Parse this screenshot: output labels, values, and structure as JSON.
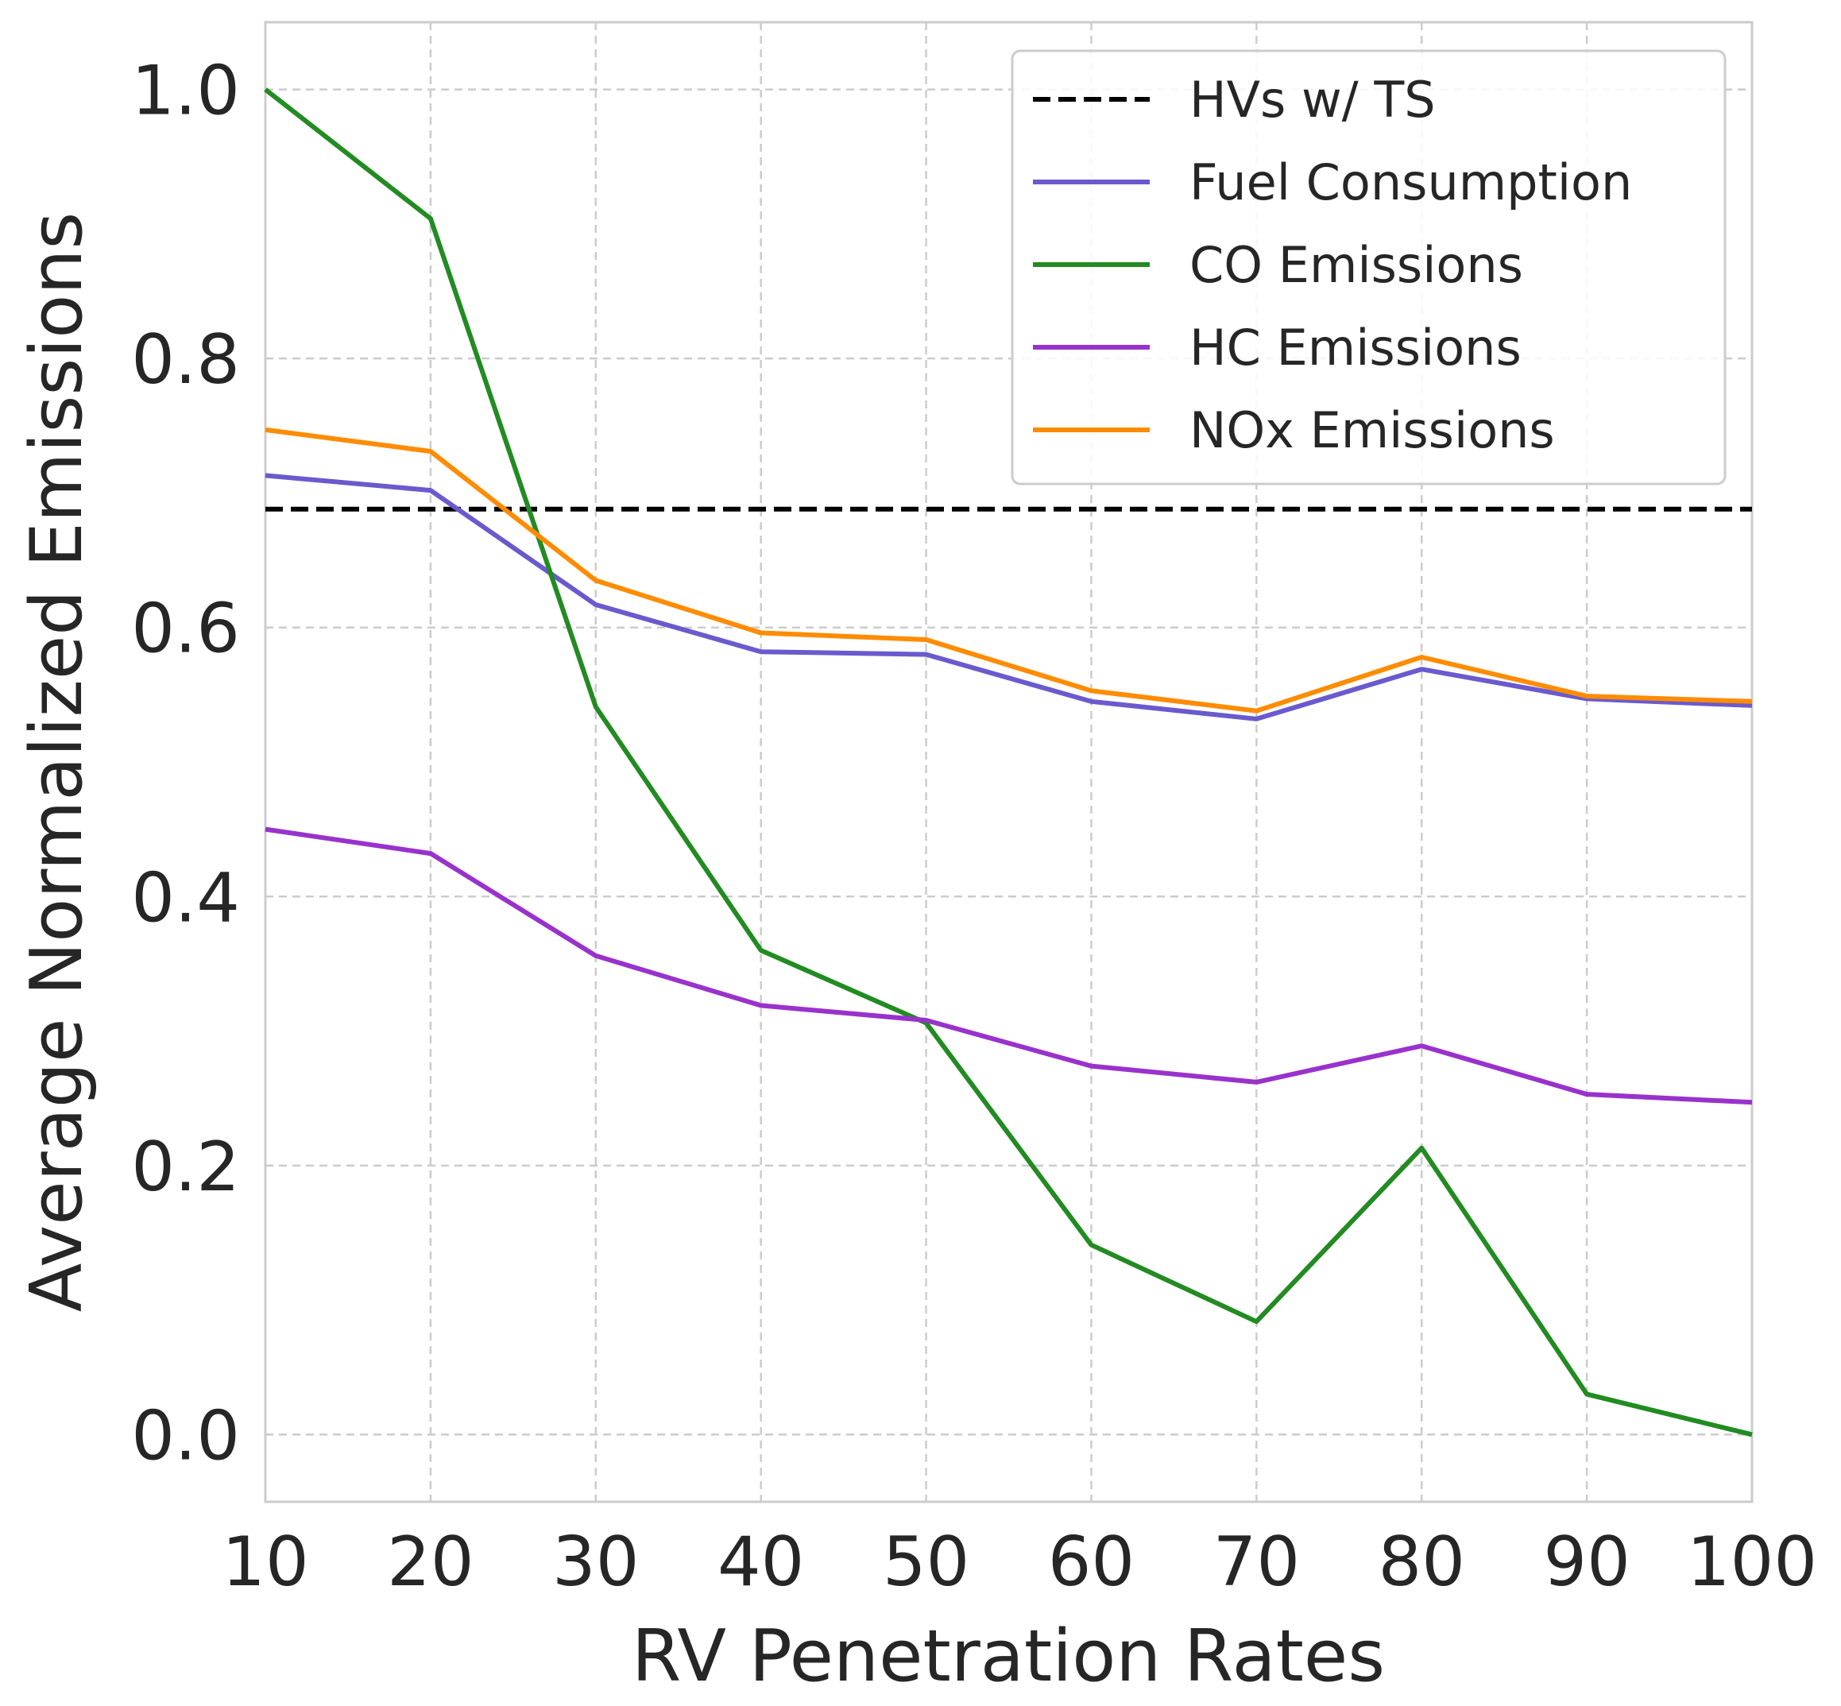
{
  "chart_data": {
    "type": "line",
    "xlabel": "RV Penetration Rates",
    "ylabel": "Average Normalized Emissions",
    "x": [
      10,
      20,
      30,
      40,
      50,
      60,
      70,
      80,
      90,
      100
    ],
    "xticks": [
      "10",
      "20",
      "30",
      "40",
      "50",
      "60",
      "70",
      "80",
      "90",
      "100"
    ],
    "yticks": [
      "0.0",
      "0.2",
      "0.4",
      "0.6",
      "0.8",
      "1.0"
    ],
    "ytick_values": [
      0.0,
      0.2,
      0.4,
      0.6,
      0.8,
      1.0
    ],
    "xlim": [
      10,
      100
    ],
    "ylim": [
      -0.05,
      1.05
    ],
    "grid": true,
    "legend_position": "top-right",
    "reference_line": {
      "name": "HVs w/ TS",
      "y": 0.688,
      "color": "#000000",
      "style": "dashed"
    },
    "series": [
      {
        "name": "Fuel Consumption",
        "color": "#6a5acd",
        "values": [
          0.713,
          0.702,
          0.617,
          0.582,
          0.58,
          0.545,
          0.532,
          0.569,
          0.547,
          0.542
        ]
      },
      {
        "name": "CO Emissions",
        "color": "#228b22",
        "values": [
          1.0,
          0.904,
          0.541,
          0.36,
          0.306,
          0.141,
          0.084,
          0.213,
          0.03,
          0.0
        ]
      },
      {
        "name": "HC Emissions",
        "color": "#9932cc",
        "values": [
          0.45,
          0.432,
          0.356,
          0.319,
          0.308,
          0.274,
          0.262,
          0.289,
          0.253,
          0.247
        ]
      },
      {
        "name": "NOx Emissions",
        "color": "#ff8c00",
        "values": [
          0.747,
          0.731,
          0.635,
          0.596,
          0.591,
          0.553,
          0.538,
          0.578,
          0.549,
          0.545
        ]
      }
    ]
  }
}
